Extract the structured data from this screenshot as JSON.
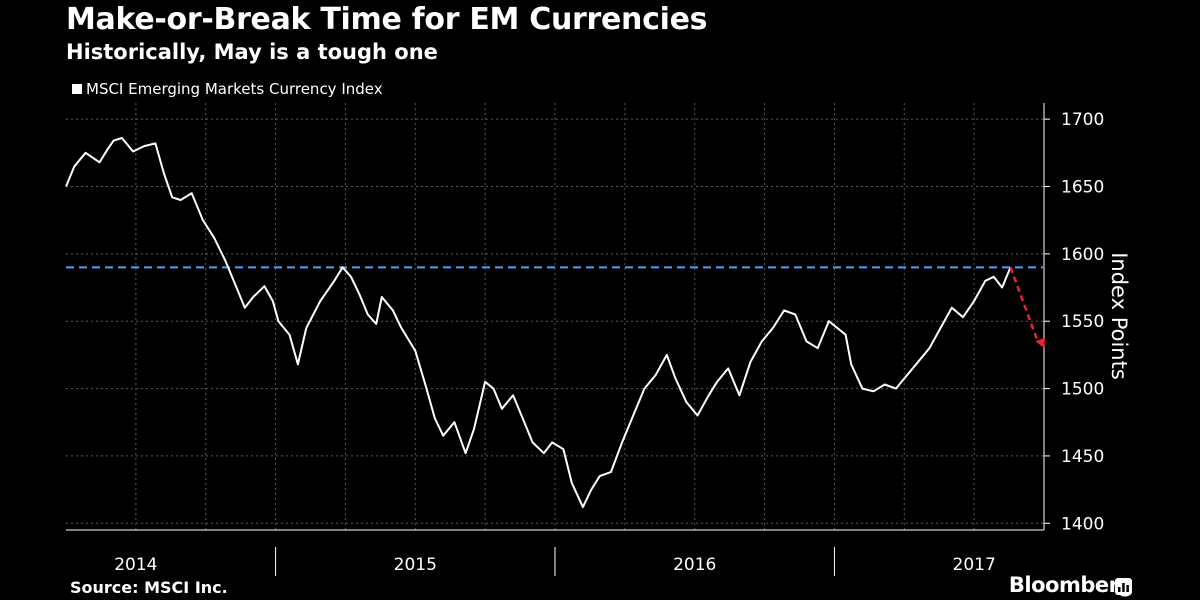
{
  "header": {
    "title": "Make-or-Break Time for EM Currencies",
    "subtitle": "Historically, May is a tough one"
  },
  "footer": {
    "source": "Source: MSCI Inc.",
    "brand": "Bloomberg",
    "brand_icon": "bloomberg-chart-icon"
  },
  "colors": {
    "background": "#000000",
    "series": "#ffffff",
    "reference_line": "#4aa3ff",
    "projection": "#e8203a",
    "grid": "#5a5a5a"
  },
  "chart_data": {
    "type": "line",
    "title": "Make-or-Break Time for EM Currencies",
    "subtitle": "Historically, May is a tough one",
    "ylabel": "Index Points",
    "ylim": [
      1395,
      1712
    ],
    "xlim": [
      2013.75,
      2017.25
    ],
    "y_ticks": [
      1400,
      1450,
      1500,
      1550,
      1600,
      1650,
      1700
    ],
    "x_tick_labels": [
      "2014",
      "2015",
      "2016",
      "2017"
    ],
    "x_label_positions": [
      2014.0,
      2015.0,
      2016.0,
      2017.0
    ],
    "x_separators": [
      2014.5,
      2015.5,
      2016.5
    ],
    "grid": true,
    "legend_position": "top-left",
    "series": [
      {
        "name": "MSCI Emerging Markets Currency Index",
        "x": [
          2013.75,
          2013.78,
          2013.82,
          2013.87,
          2013.9,
          2013.92,
          2013.95,
          2013.99,
          2014.03,
          2014.07,
          2014.1,
          2014.13,
          2014.16,
          2014.2,
          2014.24,
          2014.28,
          2014.32,
          2014.36,
          2014.39,
          2014.42,
          2014.44,
          2014.46,
          2014.49,
          2014.51,
          2014.55,
          2014.58,
          2014.61,
          2014.66,
          2014.71,
          2014.74,
          2014.77,
          2014.8,
          2014.83,
          2014.86,
          2014.88,
          2014.92,
          2014.95,
          2015.0,
          2015.04,
          2015.07,
          2015.1,
          2015.14,
          2015.18,
          2015.21,
          2015.25,
          2015.28,
          2015.31,
          2015.35,
          2015.38,
          2015.42,
          2015.46,
          2015.49,
          2015.53,
          2015.56,
          2015.6,
          2015.63,
          2015.66,
          2015.7,
          2015.74,
          2015.78,
          2015.82,
          2015.86,
          2015.9,
          2015.93,
          2015.97,
          2016.01,
          2016.05,
          2016.08,
          2016.12,
          2016.16,
          2016.2,
          2016.24,
          2016.28,
          2016.32,
          2016.36,
          2016.4,
          2016.44,
          2016.48,
          2016.51,
          2016.54,
          2016.56,
          2016.6,
          2016.64,
          2016.68,
          2016.72,
          2016.76,
          2016.8,
          2016.84,
          2016.88,
          2016.92,
          2016.96,
          2017.0,
          2017.04,
          2017.07,
          2017.1,
          2017.13
        ],
        "values": [
          1650,
          1665,
          1675,
          1668,
          1678,
          1684,
          1686,
          1676,
          1680,
          1682,
          1660,
          1642,
          1640,
          1645,
          1625,
          1612,
          1595,
          1575,
          1560,
          1568,
          1572,
          1576,
          1565,
          1550,
          1540,
          1518,
          1545,
          1565,
          1580,
          1590,
          1583,
          1570,
          1555,
          1548,
          1568,
          1558,
          1545,
          1528,
          1500,
          1478,
          1465,
          1475,
          1452,
          1470,
          1505,
          1500,
          1485,
          1495,
          1480,
          1460,
          1452,
          1460,
          1455,
          1430,
          1412,
          1425,
          1435,
          1438,
          1460,
          1480,
          1500,
          1510,
          1525,
          1508,
          1490,
          1480,
          1495,
          1505,
          1515,
          1495,
          1520,
          1535,
          1545,
          1558,
          1555,
          1535,
          1530,
          1550,
          1545,
          1540,
          1518,
          1500,
          1498,
          1503,
          1500,
          1510,
          1520,
          1530,
          1545,
          1560,
          1553,
          1565,
          1580,
          1583,
          1575,
          1590
        ]
      }
    ],
    "reference_line": {
      "value": 1590,
      "style": "dashed"
    },
    "projection": {
      "x": [
        2017.13,
        2017.25
      ],
      "values": [
        1590,
        1530
      ],
      "style": "dashed-arrow"
    }
  }
}
